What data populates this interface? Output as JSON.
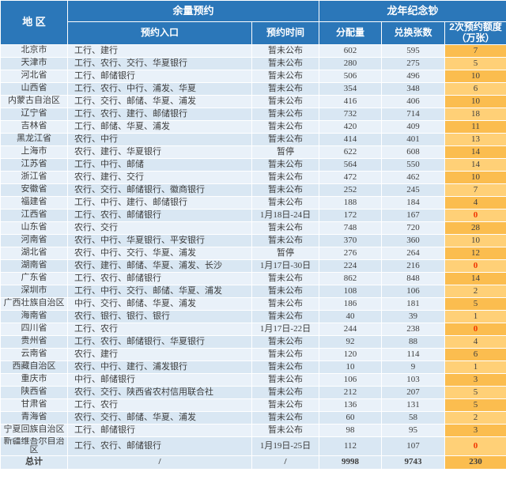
{
  "header": {
    "region": "地  区",
    "group_remaining": "余量预约",
    "group_note": "龙年纪念钞",
    "col_entrance": "预约入口",
    "col_time": "预约时间",
    "col_allocation": "分配量",
    "col_exchange": "兑换张数",
    "col_quota_line1": "2次预约额度",
    "col_quota_line2": "（万张）"
  },
  "colors": {
    "header_bg": "#2B77B9",
    "header_text": "#FFFFFF",
    "row_blue_light": "#E9F1F9",
    "row_blue_dark": "#D9E7F3",
    "row_amber_dark": "#FBBD4F",
    "row_amber_light": "#FFD077",
    "red_zero": "#F23500",
    "body_text": "#3E3E3E"
  },
  "rows": [
    {
      "region": "北京市",
      "entrance": "工行、建行",
      "time": "暂未公布",
      "allocation": "602",
      "exchange": "595",
      "quota": "7",
      "quota_red": false
    },
    {
      "region": "天津市",
      "entrance": "工行、农行、交行、华夏银行",
      "time": "暂未公布",
      "allocation": "280",
      "exchange": "275",
      "quota": "5",
      "quota_red": false
    },
    {
      "region": "河北省",
      "entrance": "工行、邮储银行",
      "time": "暂未公布",
      "allocation": "506",
      "exchange": "496",
      "quota": "10",
      "quota_red": false
    },
    {
      "region": "山西省",
      "entrance": "工行、农行、中行、浦发、华夏",
      "time": "暂未公布",
      "allocation": "354",
      "exchange": "348",
      "quota": "6",
      "quota_red": false
    },
    {
      "region": "内蒙古自治区",
      "entrance": "工行、交行、邮储、华夏、浦发",
      "time": "暂未公布",
      "allocation": "416",
      "exchange": "406",
      "quota": "10",
      "quota_red": false
    },
    {
      "region": "辽宁省",
      "entrance": "工行、农行、建行、邮储银行",
      "time": "暂未公布",
      "allocation": "732",
      "exchange": "714",
      "quota": "18",
      "quota_red": false
    },
    {
      "region": "吉林省",
      "entrance": "工行、邮储、华夏、浦发",
      "time": "暂未公布",
      "allocation": "420",
      "exchange": "409",
      "quota": "11",
      "quota_red": false
    },
    {
      "region": "黑龙江省",
      "entrance": "农行、中行",
      "time": "暂未公布",
      "allocation": "414",
      "exchange": "401",
      "quota": "13",
      "quota_red": false
    },
    {
      "region": "上海市",
      "entrance": "农行、建行、华夏银行",
      "time": "暂停",
      "allocation": "622",
      "exchange": "608",
      "quota": "14",
      "quota_red": false
    },
    {
      "region": "江苏省",
      "entrance": "工行、中行、邮储",
      "time": "暂未公布",
      "allocation": "564",
      "exchange": "550",
      "quota": "14",
      "quota_red": false
    },
    {
      "region": "浙江省",
      "entrance": "农行、建行、交行",
      "time": "暂未公布",
      "allocation": "472",
      "exchange": "462",
      "quota": "10",
      "quota_red": false
    },
    {
      "region": "安徽省",
      "entrance": "农行、交行、邮储银行、徽商银行",
      "time": "暂未公布",
      "allocation": "252",
      "exchange": "245",
      "quota": "7",
      "quota_red": false
    },
    {
      "region": "福建省",
      "entrance": "工行、中行、建行、邮储银行",
      "time": "暂未公布",
      "allocation": "188",
      "exchange": "184",
      "quota": "4",
      "quota_red": false
    },
    {
      "region": "江西省",
      "entrance": "工行、农行、邮储银行",
      "time": "1月18日-24日",
      "allocation": "172",
      "exchange": "167",
      "quota": "0",
      "quota_red": true
    },
    {
      "region": "山东省",
      "entrance": "农行、交行",
      "time": "暂未公布",
      "allocation": "748",
      "exchange": "720",
      "quota": "28",
      "quota_red": false
    },
    {
      "region": "河南省",
      "entrance": "农行、中行、华夏银行、平安银行",
      "time": "暂未公布",
      "allocation": "370",
      "exchange": "360",
      "quota": "10",
      "quota_red": false
    },
    {
      "region": "湖北省",
      "entrance": "农行、中行、交行、华夏、浦发",
      "time": "暂停",
      "allocation": "276",
      "exchange": "264",
      "quota": "12",
      "quota_red": false
    },
    {
      "region": "湖南省",
      "entrance": "农行、建行、邮储、华夏、浦发、长沙",
      "time": "1月17日-30日",
      "allocation": "224",
      "exchange": "216",
      "quota": "0",
      "quota_red": true
    },
    {
      "region": "广东省",
      "entrance": "工行、农行、邮储银行",
      "time": "暂未公布",
      "allocation": "862",
      "exchange": "848",
      "quota": "14",
      "quota_red": false
    },
    {
      "region": "深圳市",
      "entrance": "工行、中行、交行、邮储、华夏、浦发",
      "time": "暂未公布",
      "allocation": "108",
      "exchange": "106",
      "quota": "2",
      "quota_red": false
    },
    {
      "region": "广西壮族自治区",
      "entrance": "中行、交行、邮储、华夏、浦发",
      "time": "暂未公布",
      "allocation": "186",
      "exchange": "181",
      "quota": "5",
      "quota_red": false
    },
    {
      "region": "海南省",
      "entrance": "农行、银行、银行、银行",
      "time": "暂未公布",
      "allocation": "40",
      "exchange": "39",
      "quota": "1",
      "quota_red": false
    },
    {
      "region": "四川省",
      "entrance": "工行、农行",
      "time": "1月17日-22日",
      "allocation": "244",
      "exchange": "238",
      "quota": "0",
      "quota_red": true
    },
    {
      "region": "贵州省",
      "entrance": "工行、农行、邮储银行、华夏银行",
      "time": "暂未公布",
      "allocation": "92",
      "exchange": "88",
      "quota": "4",
      "quota_red": false
    },
    {
      "region": "云南省",
      "entrance": "农行、建行",
      "time": "暂未公布",
      "allocation": "120",
      "exchange": "114",
      "quota": "6",
      "quota_red": false
    },
    {
      "region": "西藏自治区",
      "entrance": "农行、中行、建行、浦发银行",
      "time": "暂未公布",
      "allocation": "10",
      "exchange": "9",
      "quota": "1",
      "quota_red": false
    },
    {
      "region": "重庆市",
      "entrance": "中行、邮储银行",
      "time": "暂未公布",
      "allocation": "106",
      "exchange": "103",
      "quota": "3",
      "quota_red": false
    },
    {
      "region": "陕西省",
      "entrance": "农行、交行、陕西省农村信用联合社",
      "time": "暂未公布",
      "allocation": "212",
      "exchange": "207",
      "quota": "5",
      "quota_red": false
    },
    {
      "region": "甘肃省",
      "entrance": "工行、农行",
      "time": "暂未公布",
      "allocation": "136",
      "exchange": "131",
      "quota": "5",
      "quota_red": false
    },
    {
      "region": "青海省",
      "entrance": "农行、交行、邮储、华夏、浦发",
      "time": "暂未公布",
      "allocation": "60",
      "exchange": "58",
      "quota": "2",
      "quota_red": false
    },
    {
      "region": "宁夏回族自治区",
      "entrance": "工行、邮储银行",
      "time": "暂未公布",
      "allocation": "98",
      "exchange": "95",
      "quota": "3",
      "quota_red": false
    },
    {
      "region": "新疆维吾尔自治区",
      "entrance": "工行、农行、邮储银行",
      "time": "1月19日-25日",
      "allocation": "112",
      "exchange": "107",
      "quota": "0",
      "quota_red": true
    }
  ],
  "total": {
    "region": "总计",
    "entrance": "/",
    "time": "/",
    "allocation": "9998",
    "exchange": "9743",
    "quota": "230"
  }
}
